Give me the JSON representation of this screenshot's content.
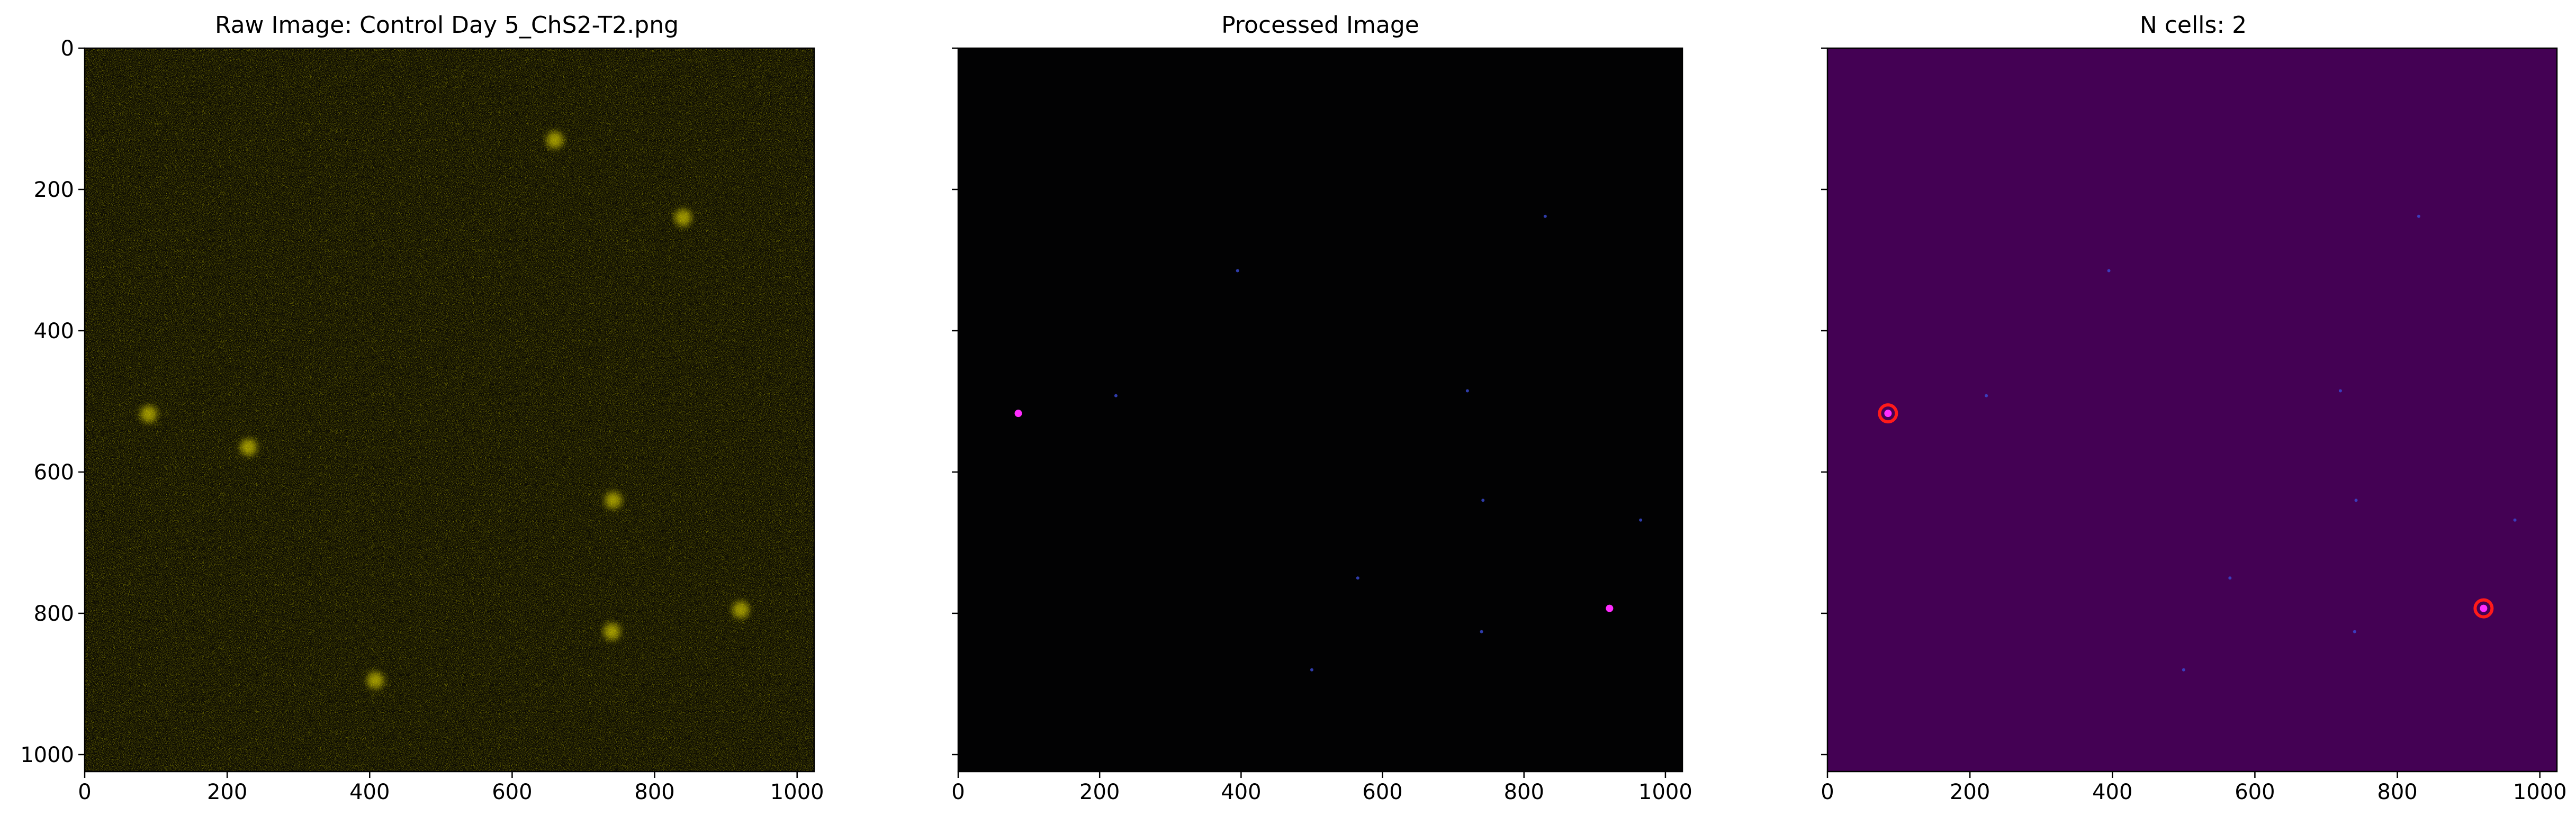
{
  "figure": {
    "panels": [
      {
        "id": "raw",
        "title": "Raw Image: Control Day 5_ChS2-T2.png",
        "colormap": "yellow",
        "show_yticklabels": true
      },
      {
        "id": "processed",
        "title": "Processed Image",
        "colormap": "dark",
        "show_yticklabels": false
      },
      {
        "id": "detected",
        "title": "N cells: 2",
        "colormap": "viridis",
        "show_yticklabels": false
      }
    ],
    "xticks": [
      0,
      200,
      400,
      600,
      800,
      1000
    ],
    "yticks": [
      0,
      200,
      400,
      600,
      800,
      1000
    ],
    "image_extent": [
      0,
      1024
    ],
    "colors": {
      "raw_background": "#0b0a03",
      "raw_speckle": "#fff200",
      "processed_background": "#020203",
      "viridis_background": "#440154",
      "detection_circle": "#ff1a1a",
      "cell_magenta": "#ff2cff",
      "cell_blue": "#3b4bd6"
    }
  },
  "chart_data": {
    "type": "image",
    "grid": false,
    "xlim": [
      0,
      1024
    ],
    "ylim": [
      1024,
      0
    ],
    "n_cells": 2,
    "detected_cells": [
      {
        "x": 85,
        "y": 517
      },
      {
        "x": 921,
        "y": 793
      }
    ],
    "faint_spots": [
      {
        "x": 830,
        "y": 238
      },
      {
        "x": 742,
        "y": 640
      },
      {
        "x": 740,
        "y": 826
      },
      {
        "x": 395,
        "y": 315
      },
      {
        "x": 720,
        "y": 485
      },
      {
        "x": 565,
        "y": 750
      },
      {
        "x": 965,
        "y": 668
      },
      {
        "x": 223,
        "y": 492
      },
      {
        "x": 500,
        "y": 880
      }
    ],
    "bright_spots_raw": [
      {
        "x": 90,
        "y": 518
      },
      {
        "x": 921,
        "y": 795
      },
      {
        "x": 742,
        "y": 640
      },
      {
        "x": 740,
        "y": 826
      },
      {
        "x": 840,
        "y": 240
      },
      {
        "x": 660,
        "y": 130
      },
      {
        "x": 408,
        "y": 895
      },
      {
        "x": 230,
        "y": 565
      }
    ]
  }
}
